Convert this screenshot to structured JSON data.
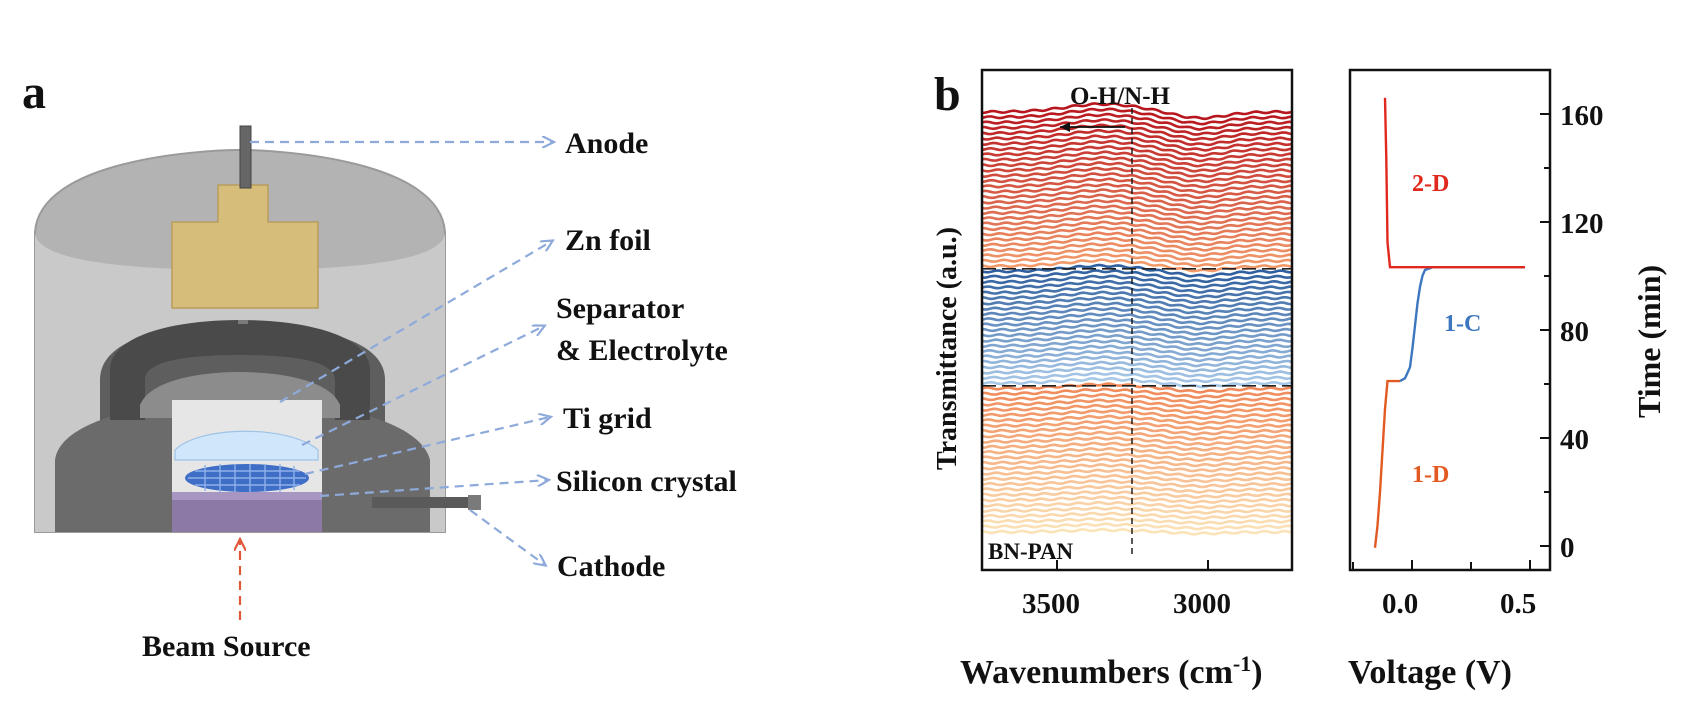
{
  "panel_a": {
    "letter": "a",
    "labels": {
      "anode": "Anode",
      "zn_foil": "Zn foil",
      "separator_1": "Separator",
      "separator_2": "& Electrolyte",
      "ti_grid": "Ti grid",
      "silicon": "Silicon crystal",
      "cathode": "Cathode",
      "beam": "Beam Source"
    },
    "colors": {
      "pointer": "#8eaadb",
      "beam": "#e0583a"
    }
  },
  "panel_b": {
    "letter": "b",
    "annotation": "O-H/N-H",
    "sample_label": "BN-PAN",
    "xlabel": "Wavenumbers (cm",
    "xlabel_sup": "-1",
    "xlabel_end": ")",
    "ylabel": "Transmittance (a.u.)",
    "xticks": [
      "3500",
      "3000"
    ],
    "colors": {
      "discharge1": "#f6d49a",
      "charge": "#3f78b5",
      "discharge2": "#c8202a"
    }
  },
  "panel_c": {
    "xlabel": "Voltage (V)",
    "ylabel": "Time (min)",
    "xticks": [
      "0.0",
      "0.5"
    ],
    "yticks": [
      "0",
      "40",
      "80",
      "120",
      "160"
    ],
    "labels": {
      "d1": "1-D",
      "c1": "1-C",
      "d2": "2-D"
    },
    "colors": {
      "d1": "#e25a22",
      "c1": "#3d77c0",
      "d2": "#e0281e"
    }
  },
  "chart_data": [
    {
      "type": "line",
      "title": "",
      "xlabel": "Wavenumbers (cm-1)",
      "ylabel": "Transmittance (a.u.)",
      "xlim": [
        3750,
        2680
      ],
      "x_ticks": [
        3500,
        3000
      ],
      "marker_line_x": 3245,
      "series": [
        {
          "name": "1-D",
          "count": 28
        },
        {
          "name": "1-C",
          "count": 22
        },
        {
          "name": "2-D",
          "count": 30
        }
      ]
    },
    {
      "type": "line",
      "title": "",
      "xlabel": "Voltage (V)",
      "ylabel": "Time (min)",
      "xlim": [
        -0.2,
        0.6
      ],
      "ylim": [
        -8,
        172
      ],
      "series": [
        {
          "name": "1-D",
          "x": [
            -0.1,
            -0.09,
            -0.08,
            -0.07,
            -0.06,
            -0.05,
            -0.03,
            0.0
          ],
          "y": [
            0,
            8,
            20,
            35,
            50,
            60,
            60,
            60
          ]
        },
        {
          "name": "1-C",
          "x": [
            0.0,
            0.02,
            0.04,
            0.05,
            0.06,
            0.07,
            0.08,
            0.09,
            0.1,
            0.13,
            0.2,
            0.35,
            0.5
          ],
          "y": [
            60,
            61,
            65,
            72,
            80,
            88,
            94,
            98,
            100,
            101,
            101,
            101,
            101
          ]
        },
        {
          "name": "2-D",
          "x": [
            0.5,
            0.3,
            0.1,
            -0.04,
            -0.05,
            -0.055,
            -0.06
          ],
          "y": [
            101,
            101,
            101,
            101,
            110,
            140,
            162
          ]
        }
      ]
    }
  ]
}
